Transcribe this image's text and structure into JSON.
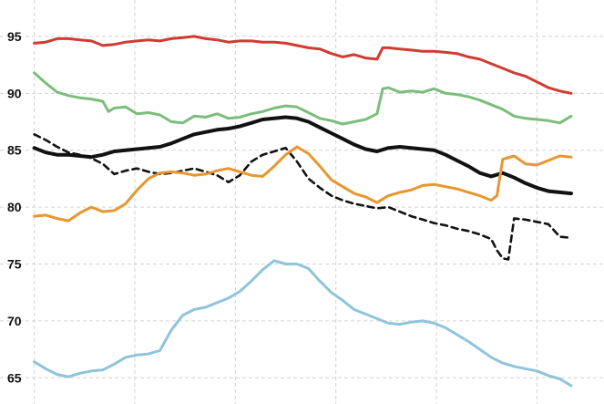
{
  "chart_data": {
    "type": "line",
    "title": "",
    "xlabel": "",
    "ylabel": "",
    "ylim": [
      62.7,
      98.2
    ],
    "xlim": [
      0,
      100
    ],
    "grid": true,
    "legend": "none",
    "y_ticks": [
      65,
      70,
      75,
      80,
      85,
      90,
      95
    ],
    "y_tick_labels": [
      "65",
      "70",
      "75",
      "80",
      "85",
      "90",
      "95"
    ],
    "x_gridlines": [
      6,
      23.6,
      41.2,
      58.8,
      76.4,
      94
    ],
    "series": [
      {
        "color": "#d03c32",
        "dash": "solid",
        "x": [
          6,
          8,
          10,
          12,
          14,
          16,
          18,
          20,
          22,
          24,
          26,
          28,
          30,
          32,
          34,
          36,
          38,
          40,
          42,
          44,
          46,
          48,
          50,
          52,
          54,
          56,
          58,
          60,
          62,
          64,
          66,
          67,
          68,
          70,
          72,
          74,
          76,
          78,
          80,
          82,
          84,
          86,
          88,
          90,
          92,
          94,
          96,
          98,
          100
        ],
        "values": [
          94.4,
          94.5,
          94.8,
          94.8,
          94.7,
          94.6,
          94.2,
          94.3,
          94.5,
          94.6,
          94.7,
          94.6,
          94.8,
          94.9,
          95.0,
          94.8,
          94.7,
          94.5,
          94.6,
          94.6,
          94.5,
          94.5,
          94.4,
          94.2,
          94.0,
          93.9,
          93.5,
          93.2,
          93.4,
          93.1,
          93.0,
          94.0,
          94.0,
          93.9,
          93.8,
          93.7,
          93.7,
          93.6,
          93.5,
          93.2,
          93.0,
          92.6,
          92.2,
          91.8,
          91.5,
          91.0,
          90.5,
          90.2,
          90.0
        ]
      },
      {
        "color": "#7dbd7b",
        "dash": "solid",
        "x": [
          6,
          8,
          10,
          12,
          14,
          16,
          18,
          19,
          20,
          22,
          24,
          26,
          28,
          30,
          32,
          34,
          36,
          38,
          40,
          42,
          44,
          46,
          48,
          50,
          52,
          54,
          56,
          58,
          60,
          62,
          64,
          66,
          67,
          68,
          70,
          72,
          74,
          76,
          78,
          80,
          82,
          84,
          86,
          88,
          90,
          92,
          94,
          96,
          98,
          100
        ],
        "values": [
          91.8,
          90.9,
          90.1,
          89.8,
          89.6,
          89.5,
          89.3,
          88.4,
          88.7,
          88.8,
          88.2,
          88.3,
          88.1,
          87.5,
          87.4,
          88.0,
          87.9,
          88.2,
          87.8,
          87.9,
          88.2,
          88.4,
          88.7,
          88.9,
          88.8,
          88.3,
          87.8,
          87.6,
          87.3,
          87.5,
          87.7,
          88.2,
          90.4,
          90.5,
          90.1,
          90.2,
          90.1,
          90.4,
          90.0,
          89.9,
          89.7,
          89.4,
          89.0,
          88.6,
          88.0,
          87.8,
          87.7,
          87.6,
          87.4,
          88.0
        ]
      },
      {
        "color": "#111111",
        "dash": "solid",
        "x": [
          6,
          8,
          10,
          12,
          14,
          16,
          18,
          20,
          22,
          24,
          26,
          28,
          30,
          32,
          34,
          36,
          38,
          40,
          42,
          44,
          46,
          48,
          50,
          52,
          54,
          56,
          58,
          60,
          62,
          64,
          66,
          68,
          70,
          72,
          74,
          76,
          78,
          80,
          82,
          84,
          86,
          88,
          90,
          92,
          94,
          96,
          98,
          100
        ],
        "values": [
          85.2,
          84.8,
          84.6,
          84.6,
          84.5,
          84.4,
          84.6,
          84.9,
          85.0,
          85.1,
          85.2,
          85.3,
          85.6,
          86.0,
          86.4,
          86.6,
          86.8,
          86.9,
          87.1,
          87.4,
          87.7,
          87.8,
          87.9,
          87.8,
          87.5,
          87.0,
          86.5,
          86.0,
          85.5,
          85.1,
          84.9,
          85.2,
          85.3,
          85.2,
          85.1,
          85.0,
          84.6,
          84.1,
          83.6,
          83.0,
          82.7,
          83.0,
          82.6,
          82.1,
          81.7,
          81.4,
          81.3,
          81.2
        ]
      },
      {
        "color": "#111111",
        "dash": "dashed",
        "x": [
          6,
          8,
          10,
          12,
          14,
          16,
          18,
          20,
          22,
          24,
          26,
          28,
          30,
          32,
          34,
          36,
          38,
          40,
          42,
          44,
          46,
          48,
          50,
          52,
          54,
          56,
          58,
          60,
          62,
          64,
          66,
          68,
          70,
          72,
          74,
          76,
          78,
          80,
          82,
          84,
          86,
          87,
          88,
          89,
          90,
          92,
          94,
          96,
          98,
          100
        ],
        "values": [
          86.4,
          85.9,
          85.3,
          84.8,
          84.6,
          84.3,
          83.8,
          82.9,
          83.2,
          83.4,
          83.1,
          82.9,
          83.0,
          83.2,
          83.4,
          83.1,
          82.8,
          82.2,
          82.8,
          84.0,
          84.6,
          84.9,
          85.2,
          84.0,
          82.5,
          81.7,
          81.0,
          80.6,
          80.3,
          80.1,
          79.9,
          80.0,
          79.6,
          79.2,
          78.9,
          78.6,
          78.4,
          78.1,
          77.9,
          77.6,
          77.2,
          76.2,
          75.5,
          75.4,
          79.0,
          78.9,
          78.7,
          78.5,
          77.4,
          77.3
        ]
      },
      {
        "color": "#e8962f",
        "dash": "solid",
        "x": [
          6,
          8,
          10,
          12,
          14,
          16,
          18,
          20,
          22,
          24,
          26,
          28,
          30,
          32,
          34,
          36,
          38,
          40,
          42,
          44,
          46,
          48,
          50,
          52,
          54,
          56,
          58,
          60,
          62,
          64,
          66,
          68,
          70,
          72,
          74,
          76,
          78,
          80,
          82,
          84,
          86,
          87,
          88,
          90,
          92,
          94,
          96,
          98,
          100
        ],
        "values": [
          79.2,
          79.3,
          79.0,
          78.8,
          79.5,
          80.0,
          79.6,
          79.7,
          80.3,
          81.5,
          82.5,
          83.0,
          83.1,
          83.0,
          82.8,
          82.9,
          83.2,
          83.4,
          83.1,
          82.8,
          82.7,
          83.6,
          84.6,
          85.3,
          84.7,
          83.6,
          82.4,
          81.8,
          81.2,
          80.9,
          80.4,
          81.0,
          81.3,
          81.5,
          81.9,
          82.0,
          81.8,
          81.6,
          81.3,
          81.0,
          80.6,
          81.0,
          84.2,
          84.5,
          83.8,
          83.7,
          84.1,
          84.5,
          84.4
        ]
      },
      {
        "color": "#8fc4da",
        "dash": "solid",
        "x": [
          6,
          8,
          10,
          12,
          14,
          16,
          18,
          20,
          22,
          24,
          26,
          28,
          30,
          32,
          34,
          36,
          38,
          40,
          42,
          44,
          46,
          48,
          50,
          52,
          54,
          56,
          58,
          60,
          62,
          64,
          66,
          68,
          70,
          72,
          74,
          76,
          78,
          80,
          82,
          84,
          86,
          88,
          90,
          92,
          94,
          96,
          98,
          100
        ],
        "values": [
          66.4,
          65.8,
          65.3,
          65.1,
          65.4,
          65.6,
          65.7,
          66.2,
          66.8,
          67.0,
          67.1,
          67.4,
          69.2,
          70.5,
          71.0,
          71.2,
          71.6,
          72.0,
          72.6,
          73.5,
          74.5,
          75.3,
          75.0,
          75.0,
          74.6,
          73.5,
          72.5,
          71.8,
          71.0,
          70.6,
          70.2,
          69.8,
          69.7,
          69.9,
          70.0,
          69.8,
          69.4,
          68.8,
          68.2,
          67.5,
          66.8,
          66.3,
          66.0,
          65.8,
          65.6,
          65.2,
          64.9,
          64.3
        ]
      }
    ]
  }
}
